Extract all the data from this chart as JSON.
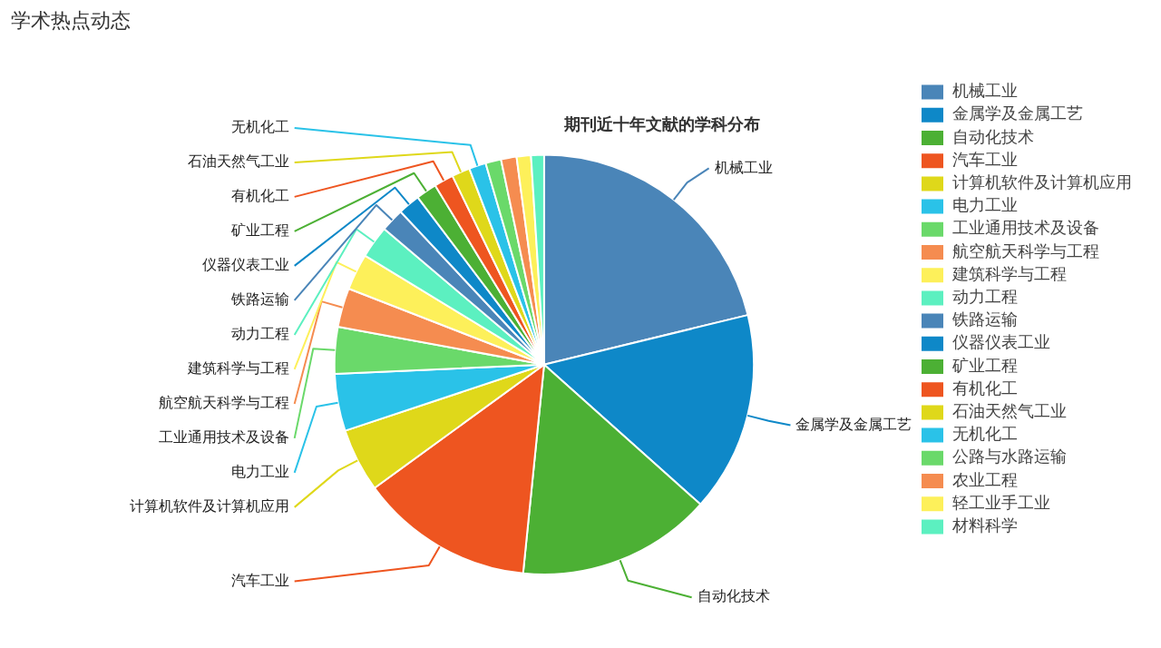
{
  "chart_data": {
    "type": "pie",
    "title": "期刊近十年文献的学科分布",
    "annotations": [
      "学术热点动态"
    ],
    "categories": [
      "机械工业",
      "金属学及金属工艺",
      "自动化技术",
      "汽车工业",
      "计算机软件及计算机应用",
      "电力工业",
      "工业通用技术及设备",
      "航空航天科学与工程",
      "建筑科学与工程",
      "动力工程",
      "铁路运输",
      "仪器仪表工业",
      "矿业工程",
      "有机化工",
      "石油天然气工业",
      "无机化工",
      "公路与水路运输",
      "农业工程",
      "轻工业手工业",
      "材料科学"
    ],
    "values": [
      21.2,
      15.4,
      15,
      13.4,
      4.9,
      4.4,
      3.6,
      3,
      2.8,
      2.5,
      1.8,
      1.7,
      1.6,
      1.5,
      1.4,
      1.3,
      1.2,
      1.2,
      1.1,
      1.0
    ],
    "colors": [
      "#4a85b8",
      "#0e88c8",
      "#4cb034",
      "#ee5520",
      "#dfd81a",
      "#2ac2e8",
      "#6ad96a",
      "#f58c50",
      "#fdf05a",
      "#5cf0c0",
      "#4a85b8",
      "#0e88c8",
      "#4cb034",
      "#ee5520",
      "#dfd81a",
      "#2ac2e8",
      "#6ad96a",
      "#f58c50",
      "#fdf05a",
      "#5cf0c0"
    ],
    "legend": "right"
  }
}
